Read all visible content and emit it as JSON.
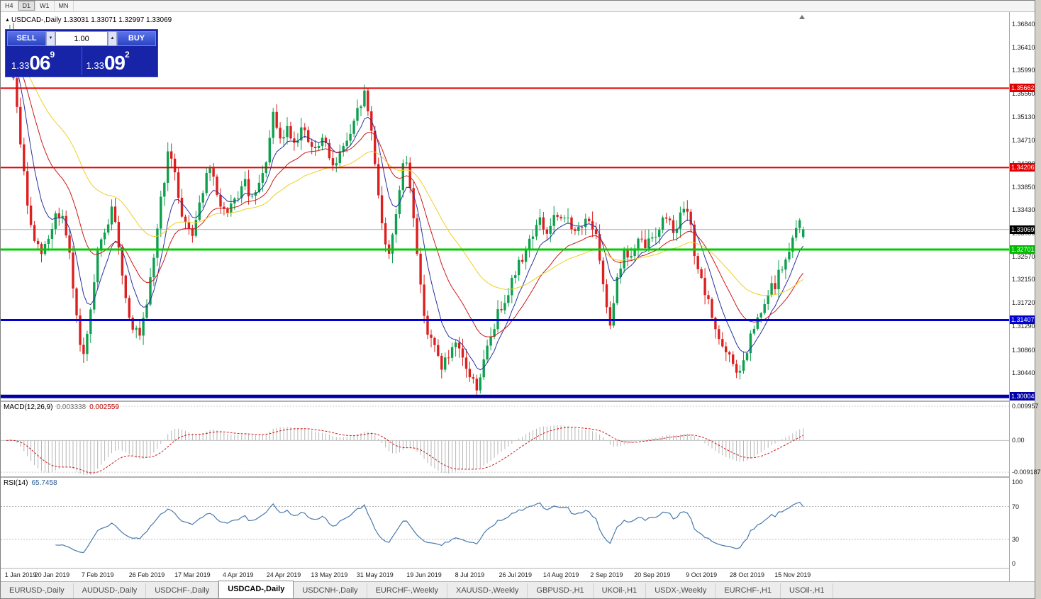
{
  "toolbar": {
    "timeframes": [
      "H4",
      "D1",
      "W1",
      "MN"
    ],
    "active_timeframe": "D1"
  },
  "chart": {
    "symbol": "USDCAD-,Daily",
    "ohlc_line": "USDCAD-,Daily  1.33031 1.33071 1.32997 1.33069",
    "open": "1.33031",
    "high": "1.33071",
    "low": "1.32997",
    "close": "1.33069"
  },
  "trade_panel": {
    "sell_label": "SELL",
    "buy_label": "BUY",
    "volume": "1.00",
    "bid": {
      "prefix": "1.33",
      "big": "06",
      "sup": "9"
    },
    "ask": {
      "prefix": "1.33",
      "big": "09",
      "sup": "2"
    }
  },
  "levels": [
    {
      "price": 1.35662,
      "label": "1.35662",
      "color": "#e00000",
      "tag_color": "#e00000",
      "width": 2,
      "current": false
    },
    {
      "price": 1.34206,
      "label": "1.34206",
      "color": "#e00000",
      "tag_color": "#e00000",
      "width": 2,
      "current": false
    },
    {
      "price": 1.33069,
      "label": "1.33069",
      "color": "#aaaaaa",
      "tag_color": "#000000",
      "width": 1,
      "current": true
    },
    {
      "price": 1.32701,
      "label": "1.32701",
      "color": "#00cc00",
      "tag_color": "#00bb00",
      "width": 3,
      "current": false
    },
    {
      "price": 1.31407,
      "label": "1.31407",
      "color": "#0000d0",
      "tag_color": "#0000d0",
      "width": 3,
      "current": false
    },
    {
      "price": 1.30004,
      "label": "1.30004",
      "color": "#0000a8",
      "tag_color": "#0000a8",
      "width": 5,
      "current": false
    }
  ],
  "macd_panel": {
    "label": "MACD(12,26,9)",
    "value_main": "0.003338",
    "value_signal": "0.002559",
    "scale_marks": [
      {
        "text": "0.009957",
        "value": 0.009957
      },
      {
        "text": "0.00",
        "value": 0
      },
      {
        "text": "-0.009187",
        "value": -0.009187
      }
    ]
  },
  "rsi_panel": {
    "label": "RSI(14)",
    "value": "65.7458",
    "scale_marks": [
      {
        "text": "100",
        "value": 100
      },
      {
        "text": "70",
        "value": 70
      },
      {
        "text": "30",
        "value": 30
      },
      {
        "text": "0",
        "value": 0
      }
    ],
    "guide_levels": [
      70,
      30
    ]
  },
  "tabs": [
    {
      "label": "EURUSD-,Daily",
      "active": false
    },
    {
      "label": "AUDUSD-,Daily",
      "active": false
    },
    {
      "label": "USDCHF-,Daily",
      "active": false
    },
    {
      "label": "USDCAD-,Daily",
      "active": true
    },
    {
      "label": "USDCNH-,Daily",
      "active": false
    },
    {
      "label": "EURCHF-,Weekly",
      "active": false
    },
    {
      "label": "XAUUSD-,Weekly",
      "active": false
    },
    {
      "label": "GBPUSD-,H1",
      "active": false
    },
    {
      "label": "UKOil-,H1",
      "active": false
    },
    {
      "label": "USDX-,Weekly",
      "active": false
    },
    {
      "label": "EURCHF-,H1",
      "active": false
    },
    {
      "label": "USOil-,H1",
      "active": false
    }
  ],
  "chart_data": {
    "type": "candlestick",
    "title": "USDCAD-,Daily",
    "candle_count": 228,
    "bull_color": "#0ea04e",
    "bear_color": "#dc2020",
    "y_axis": {
      "top": 1.3706,
      "bottom": 1.2993,
      "tick_labels": [
        "1.36840",
        "1.36410",
        "1.35990",
        "1.35560",
        "1.35130",
        "1.34710",
        "1.34280",
        "1.33850",
        "1.33430",
        "1.33000",
        "1.32570",
        "1.32150",
        "1.31720",
        "1.31290",
        "1.30860",
        "1.30440",
        "1.30010"
      ]
    },
    "x_tick_labels": [
      "1 Jan 2019",
      "20 Jan 2019",
      "7 Feb 2019",
      "26 Feb 2019",
      "17 Mar 2019",
      "4 Apr 2019",
      "24 Apr 2019",
      "13 May 2019",
      "31 May 2019",
      "19 Jun 2019",
      "8 Jul 2019",
      "26 Jul 2019",
      "14 Aug 2019",
      "2 Sep 2019",
      "20 Sep 2019",
      "9 Oct 2019",
      "28 Oct 2019",
      "15 Nov 2019"
    ],
    "price_path_anchors": [
      [
        0,
        1.363
      ],
      [
        1,
        1.3662
      ],
      [
        2,
        1.359
      ],
      [
        4,
        1.3468
      ],
      [
        6,
        1.335
      ],
      [
        8,
        1.3282
      ],
      [
        10,
        1.3262
      ],
      [
        12,
        1.329
      ],
      [
        14,
        1.3335
      ],
      [
        16,
        1.333
      ],
      [
        18,
        1.3255
      ],
      [
        20,
        1.314
      ],
      [
        22,
        1.3068
      ],
      [
        24,
        1.315
      ],
      [
        26,
        1.3262
      ],
      [
        28,
        1.33
      ],
      [
        30,
        1.3342
      ],
      [
        32,
        1.328
      ],
      [
        34,
        1.3178
      ],
      [
        36,
        1.313
      ],
      [
        38,
        1.3108
      ],
      [
        40,
        1.3162
      ],
      [
        42,
        1.3258
      ],
      [
        44,
        1.3362
      ],
      [
        46,
        1.3442
      ],
      [
        48,
        1.3415
      ],
      [
        50,
        1.333
      ],
      [
        53,
        1.3302
      ],
      [
        56,
        1.3382
      ],
      [
        58,
        1.342
      ],
      [
        60,
        1.3368
      ],
      [
        63,
        1.333
      ],
      [
        66,
        1.3372
      ],
      [
        68,
        1.339
      ],
      [
        70,
        1.3358
      ],
      [
        73,
        1.3402
      ],
      [
        75,
        1.3472
      ],
      [
        76,
        1.3512
      ],
      [
        78,
        1.3468
      ],
      [
        80,
        1.3492
      ],
      [
        82,
        1.347
      ],
      [
        84,
        1.3492
      ],
      [
        86,
        1.3468
      ],
      [
        88,
        1.3448
      ],
      [
        90,
        1.3472
      ],
      [
        92,
        1.344
      ],
      [
        94,
        1.3428
      ],
      [
        96,
        1.3462
      ],
      [
        98,
        1.3475
      ],
      [
        100,
        1.3522
      ],
      [
        102,
        1.3556
      ],
      [
        104,
        1.3488
      ],
      [
        106,
        1.3375
      ],
      [
        108,
        1.3272
      ],
      [
        109,
        1.3265
      ],
      [
        111,
        1.334
      ],
      [
        113,
        1.3418
      ],
      [
        114,
        1.3432
      ],
      [
        116,
        1.3335
      ],
      [
        118,
        1.3198
      ],
      [
        120,
        1.3118
      ],
      [
        122,
        1.3088
      ],
      [
        124,
        1.3058
      ],
      [
        126,
        1.3072
      ],
      [
        128,
        1.309
      ],
      [
        130,
        1.3068
      ],
      [
        132,
        1.3038
      ],
      [
        134,
        1.3018
      ],
      [
        136,
        1.3062
      ],
      [
        138,
        1.3112
      ],
      [
        140,
        1.3152
      ],
      [
        142,
        1.3182
      ],
      [
        144,
        1.3212
      ],
      [
        146,
        1.3242
      ],
      [
        148,
        1.3272
      ],
      [
        150,
        1.3302
      ],
      [
        152,
        1.3322
      ],
      [
        154,
        1.3298
      ],
      [
        156,
        1.333
      ],
      [
        158,
        1.3318
      ],
      [
        160,
        1.3332
      ],
      [
        162,
        1.3298
      ],
      [
        164,
        1.3312
      ],
      [
        166,
        1.3332
      ],
      [
        168,
        1.3288
      ],
      [
        170,
        1.3198
      ],
      [
        172,
        1.3138
      ],
      [
        174,
        1.3222
      ],
      [
        176,
        1.3262
      ],
      [
        178,
        1.3258
      ],
      [
        180,
        1.3282
      ],
      [
        182,
        1.3278
      ],
      [
        184,
        1.3292
      ],
      [
        186,
        1.3312
      ],
      [
        188,
        1.3332
      ],
      [
        190,
        1.3308
      ],
      [
        192,
        1.333
      ],
      [
        194,
        1.3342
      ],
      [
        196,
        1.3268
      ],
      [
        198,
        1.3208
      ],
      [
        200,
        1.3168
      ],
      [
        202,
        1.3128
      ],
      [
        204,
        1.3088
      ],
      [
        206,
        1.3068
      ],
      [
        208,
        1.305
      ],
      [
        209,
        1.3042
      ],
      [
        211,
        1.3082
      ],
      [
        213,
        1.3128
      ],
      [
        215,
        1.3148
      ],
      [
        217,
        1.3188
      ],
      [
        219,
        1.3208
      ],
      [
        221,
        1.3238
      ],
      [
        223,
        1.3262
      ],
      [
        225,
        1.3308
      ],
      [
        226,
        1.3332
      ],
      [
        227,
        1.33069
      ]
    ],
    "moving_averages": [
      {
        "period": 8,
        "color": "#2733a0"
      },
      {
        "period": 20,
        "color": "#d01818"
      },
      {
        "period": 45,
        "color": "#f0cf20"
      }
    ],
    "indicators": [
      {
        "name": "MACD",
        "params": [
          12,
          26,
          9
        ],
        "range_top": 0.0112,
        "range_bottom": -0.0104,
        "histogram_color": "#b6b6b6",
        "signal_color": "#d01818"
      },
      {
        "name": "RSI",
        "params": [
          14
        ],
        "range": [
          0,
          100
        ],
        "line_color": "#4779ad"
      }
    ]
  }
}
